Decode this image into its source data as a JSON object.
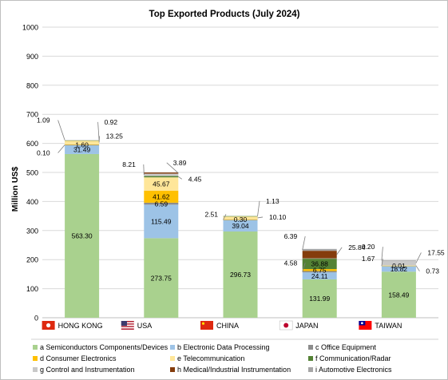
{
  "chart_data": {
    "type": "bar",
    "stacked": true,
    "title": "Top Exported Products (July 2024)",
    "ylabel": "Million US$",
    "ylim": [
      0,
      1000
    ],
    "yticks": [
      0,
      100,
      200,
      300,
      400,
      500,
      600,
      700,
      800,
      900,
      1000
    ],
    "grid": true,
    "legend_position": "bottom",
    "categories": [
      "HONG KONG",
      "USA",
      "CHINA",
      "JAPAN",
      "TAIWAN"
    ],
    "series": [
      {
        "name": "a Semiconductors Components/Devices",
        "color": "#a9d18e",
        "values": [
          563.3,
          273.75,
          296.73,
          131.99,
          158.49
        ]
      },
      {
        "name": "b Electronic Data Processing",
        "color": "#9dc3e6",
        "values": [
          31.49,
          115.49,
          39.04,
          24.11,
          18.82
        ]
      },
      {
        "name": "c Office Equipment",
        "color": "#8c8c8c",
        "values": [
          0.1,
          6.59,
          2.51,
          4.58,
          1.67
        ]
      },
      {
        "name": "d Consumer Electronics",
        "color": "#ffc000",
        "values": [
          1.6,
          41.62,
          0.3,
          6.75,
          0.01
        ]
      },
      {
        "name": "e Telecommunication",
        "color": "#ffe699",
        "values": [
          13.25,
          45.67,
          10.1,
          0,
          0.73
        ]
      },
      {
        "name": "f Communication/Radar",
        "color": "#548235",
        "values": [
          0.92,
          4.45,
          1.13,
          36.88,
          0
        ]
      },
      {
        "name": "g Control and Instrumentation",
        "color": "#c9c9c9",
        "values": [
          1.09,
          8.21,
          0,
          0.2,
          17.55
        ]
      },
      {
        "name": "h Medical/Industrial Instrumentation",
        "color": "#843c0c",
        "values": [
          0,
          3.89,
          0,
          25.84,
          0
        ]
      },
      {
        "name": "i Automotive Electronics",
        "color": "#a5a5a5",
        "values": [
          0,
          0,
          0,
          6.39,
          0.2
        ]
      }
    ],
    "data_labels": [
      [
        {
          "t": "563.30",
          "x": 0,
          "y": 0,
          "s": 0,
          "d": "in"
        },
        {
          "t": "31.49",
          "x": 0,
          "y": 0,
          "s": 1,
          "d": "in"
        },
        {
          "t": "1.60",
          "x": 0,
          "y": 0,
          "s": 3,
          "d": "in"
        },
        {
          "t": "0.10",
          "x": -40,
          "y": 13,
          "s": 2,
          "d": "left"
        },
        {
          "t": "13.25",
          "x": 30,
          "y": -5,
          "s": 4,
          "d": "right"
        },
        {
          "t": "1.09",
          "x": -40,
          "y": -22,
          "s": 6,
          "d": "left"
        },
        {
          "t": "0.92",
          "x": 28,
          "y": -20,
          "s": 5,
          "d": "right"
        }
      ],
      [
        {
          "t": "273.75",
          "x": 0,
          "y": 0,
          "s": 0,
          "d": "in"
        },
        {
          "t": "115.49",
          "x": 0,
          "y": 0,
          "s": 1,
          "d": "in"
        },
        {
          "t": "6.59",
          "x": 0,
          "y": 0,
          "s": 2,
          "d": "in"
        },
        {
          "t": "41.62",
          "x": 0,
          "y": 0,
          "s": 3,
          "d": "in"
        },
        {
          "t": "45.67",
          "x": 0,
          "y": 0,
          "s": 4,
          "d": "in"
        },
        {
          "t": "4.45",
          "x": 34,
          "y": 6,
          "s": 5,
          "d": "right"
        },
        {
          "t": "8.21",
          "x": -32,
          "y": -10,
          "s": 6,
          "d": "left"
        },
        {
          "t": "3.89",
          "x": 15,
          "y": -10,
          "s": 7,
          "d": "right"
        }
      ],
      [
        {
          "t": "296.73",
          "x": 0,
          "y": 0,
          "s": 0,
          "d": "in"
        },
        {
          "t": "39.04",
          "x": 0,
          "y": 0,
          "s": 1,
          "d": "in"
        },
        {
          "t": "0.30",
          "x": 0,
          "y": 0,
          "s": 3,
          "d": "in"
        },
        {
          "t": "2.51",
          "x": -28,
          "y": -4,
          "s": 2,
          "d": "left"
        },
        {
          "t": "10.10",
          "x": 36,
          "y": 2,
          "s": 4,
          "d": "right"
        },
        {
          "t": "1.13",
          "x": 32,
          "y": -16,
          "s": 5,
          "d": "right"
        }
      ],
      [
        {
          "t": "131.99",
          "x": 0,
          "y": 0,
          "s": 0,
          "d": "in"
        },
        {
          "t": "24.11",
          "x": 0,
          "y": 0,
          "s": 1,
          "d": "in"
        },
        {
          "t": "6.75",
          "x": 0,
          "y": 0,
          "s": 3,
          "d": "in"
        },
        {
          "t": "36.88",
          "x": 0,
          "y": 0,
          "s": 5,
          "d": "in"
        },
        {
          "t": "4.58",
          "x": -28,
          "y": -8,
          "s": 2,
          "d": "left"
        },
        {
          "t": "6.39",
          "x": -28,
          "y": -14,
          "s": 8,
          "d": "left"
        },
        {
          "t": "25.84",
          "x": 36,
          "y": -6,
          "s": 7,
          "d": "right"
        }
      ],
      [
        {
          "t": "158.49",
          "x": 0,
          "y": 0,
          "s": 0,
          "d": "in"
        },
        {
          "t": "18.82",
          "x": 0,
          "y": 0,
          "s": 1,
          "d": "in"
        },
        {
          "t": "0.01",
          "x": 0,
          "y": 0,
          "s": 3,
          "d": "in"
        },
        {
          "t": "1.67",
          "x": -30,
          "y": -6,
          "s": 2,
          "d": "left"
        },
        {
          "t": "0.73",
          "x": 34,
          "y": 10,
          "s": 4,
          "d": "right"
        },
        {
          "t": "17.55",
          "x": 36,
          "y": -10,
          "s": 6,
          "d": "right"
        },
        {
          "t": "0.20",
          "x": -30,
          "y": -14,
          "s": 8,
          "d": "left"
        }
      ]
    ]
  },
  "flags": [
    "hong-kong-flag-icon",
    "us-flag-icon",
    "china-flag-icon",
    "japan-flag-icon",
    "taiwan-flag-icon"
  ]
}
